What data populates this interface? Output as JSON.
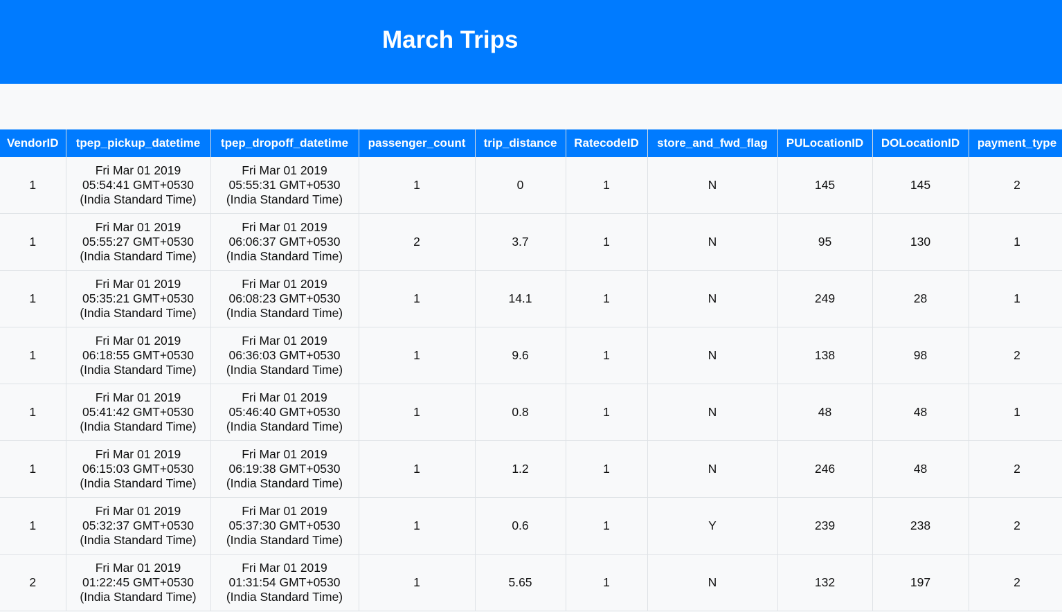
{
  "page": {
    "title": "March Trips"
  },
  "table": {
    "columns": [
      "VendorID",
      "tpep_pickup_datetime",
      "tpep_dropoff_datetime",
      "passenger_count",
      "trip_distance",
      "RatecodeID",
      "store_and_fwd_flag",
      "PULocationID",
      "DOLocationID",
      "payment_type"
    ],
    "rows": [
      {
        "vendor_id": "1",
        "pickup": [
          "Fri Mar 01 2019",
          "05:54:41 GMT+0530",
          "(India Standard Time)"
        ],
        "dropoff": [
          "Fri Mar 01 2019",
          "05:55:31 GMT+0530",
          "(India Standard Time)"
        ],
        "passenger_count": "1",
        "trip_distance": "0",
        "ratecode_id": "1",
        "store_and_fwd_flag": "N",
        "pu_location_id": "145",
        "do_location_id": "145",
        "payment_type": "2"
      },
      {
        "vendor_id": "1",
        "pickup": [
          "Fri Mar 01 2019",
          "05:55:27 GMT+0530",
          "(India Standard Time)"
        ],
        "dropoff": [
          "Fri Mar 01 2019",
          "06:06:37 GMT+0530",
          "(India Standard Time)"
        ],
        "passenger_count": "2",
        "trip_distance": "3.7",
        "ratecode_id": "1",
        "store_and_fwd_flag": "N",
        "pu_location_id": "95",
        "do_location_id": "130",
        "payment_type": "1"
      },
      {
        "vendor_id": "1",
        "pickup": [
          "Fri Mar 01 2019",
          "05:35:21 GMT+0530",
          "(India Standard Time)"
        ],
        "dropoff": [
          "Fri Mar 01 2019",
          "06:08:23 GMT+0530",
          "(India Standard Time)"
        ],
        "passenger_count": "1",
        "trip_distance": "14.1",
        "ratecode_id": "1",
        "store_and_fwd_flag": "N",
        "pu_location_id": "249",
        "do_location_id": "28",
        "payment_type": "1"
      },
      {
        "vendor_id": "1",
        "pickup": [
          "Fri Mar 01 2019",
          "06:18:55 GMT+0530",
          "(India Standard Time)"
        ],
        "dropoff": [
          "Fri Mar 01 2019",
          "06:36:03 GMT+0530",
          "(India Standard Time)"
        ],
        "passenger_count": "1",
        "trip_distance": "9.6",
        "ratecode_id": "1",
        "store_and_fwd_flag": "N",
        "pu_location_id": "138",
        "do_location_id": "98",
        "payment_type": "2"
      },
      {
        "vendor_id": "1",
        "pickup": [
          "Fri Mar 01 2019",
          "05:41:42 GMT+0530",
          "(India Standard Time)"
        ],
        "dropoff": [
          "Fri Mar 01 2019",
          "05:46:40 GMT+0530",
          "(India Standard Time)"
        ],
        "passenger_count": "1",
        "trip_distance": "0.8",
        "ratecode_id": "1",
        "store_and_fwd_flag": "N",
        "pu_location_id": "48",
        "do_location_id": "48",
        "payment_type": "1"
      },
      {
        "vendor_id": "1",
        "pickup": [
          "Fri Mar 01 2019",
          "06:15:03 GMT+0530",
          "(India Standard Time)"
        ],
        "dropoff": [
          "Fri Mar 01 2019",
          "06:19:38 GMT+0530",
          "(India Standard Time)"
        ],
        "passenger_count": "1",
        "trip_distance": "1.2",
        "ratecode_id": "1",
        "store_and_fwd_flag": "N",
        "pu_location_id": "246",
        "do_location_id": "48",
        "payment_type": "2"
      },
      {
        "vendor_id": "1",
        "pickup": [
          "Fri Mar 01 2019",
          "05:32:37 GMT+0530",
          "(India Standard Time)"
        ],
        "dropoff": [
          "Fri Mar 01 2019",
          "05:37:30 GMT+0530",
          "(India Standard Time)"
        ],
        "passenger_count": "1",
        "trip_distance": "0.6",
        "ratecode_id": "1",
        "store_and_fwd_flag": "Y",
        "pu_location_id": "239",
        "do_location_id": "238",
        "payment_type": "2"
      },
      {
        "vendor_id": "2",
        "pickup": [
          "Fri Mar 01 2019",
          "01:22:45 GMT+0530",
          "(India Standard Time)"
        ],
        "dropoff": [
          "Fri Mar 01 2019",
          "01:31:54 GMT+0530",
          "(India Standard Time)"
        ],
        "passenger_count": "1",
        "trip_distance": "5.65",
        "ratecode_id": "1",
        "store_and_fwd_flag": "N",
        "pu_location_id": "132",
        "do_location_id": "197",
        "payment_type": "2"
      }
    ]
  },
  "colors": {
    "accent": "#007bff",
    "background": "#f8f9fa",
    "text": "#111111",
    "border": "#dee2e6"
  }
}
